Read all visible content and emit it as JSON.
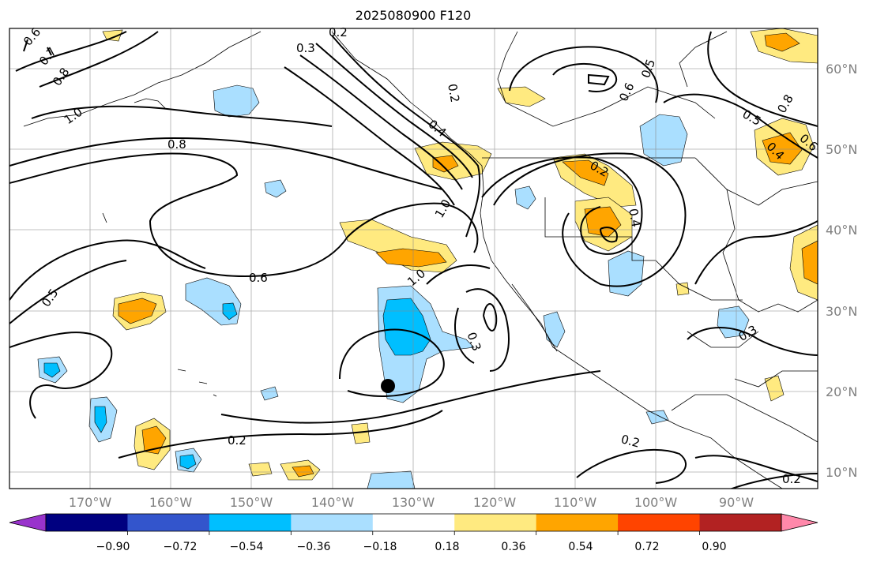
{
  "title": "2025080900 F120",
  "lon_labels": [
    "170°W",
    "160°W",
    "150°W",
    "140°W",
    "130°W",
    "120°W",
    "110°W",
    "100°W",
    "90°W"
  ],
  "lat_labels": [
    "60°N",
    "50°N",
    "40°N",
    "30°N",
    "20°N",
    "10°N"
  ],
  "contour_labels": [
    "0.2",
    "0.3",
    "0.6",
    "0.7",
    "0.8",
    "1.0",
    "0.8",
    "0.6",
    "0.5",
    "0.2",
    "0.4",
    "1.0",
    "1.0",
    "0.3",
    "0.2",
    "0.4",
    "0.6",
    "0.5",
    "0.5",
    "0.4",
    "0.8",
    "0.6",
    "0.3",
    "0.2",
    "0.2",
    "0.2"
  ],
  "colorbar": {
    "colors": [
      "#9933cc",
      "#000080",
      "#3355cc",
      "#00bfff",
      "#aadfff",
      "#ffffff",
      "#ffea80",
      "#ffa500",
      "#ff4400",
      "#b22222",
      "#ff88aa"
    ],
    "tick_labels": [
      "−0.90",
      "−0.72",
      "−0.54",
      "−0.36",
      "−0.18",
      "0.18",
      "0.36",
      "0.54",
      "0.72",
      "0.90"
    ]
  },
  "marker_label": ""
}
